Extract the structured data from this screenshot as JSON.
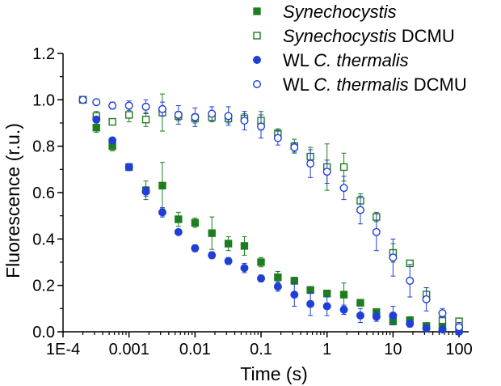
{
  "chart_data": {
    "type": "scatter",
    "title": "",
    "xlabel": "Time (s)",
    "ylabel": "Fluorescence (r.u.)",
    "xscale": "log",
    "xlim": [
      0.0001,
      140
    ],
    "ylim": [
      0.0,
      1.2
    ],
    "xticks": [
      {
        "value": 0.0001,
        "label": "1E-4"
      },
      {
        "value": 0.001,
        "label": "0.001"
      },
      {
        "value": 0.01,
        "label": "0.01"
      },
      {
        "value": 0.1,
        "label": "0.1"
      },
      {
        "value": 1,
        "label": "1"
      },
      {
        "value": 10,
        "label": "10"
      },
      {
        "value": 100,
        "label": "100"
      }
    ],
    "yticks": [
      {
        "value": 0.0,
        "label": "0.0"
      },
      {
        "value": 0.2,
        "label": "0.2"
      },
      {
        "value": 0.4,
        "label": "0.4"
      },
      {
        "value": 0.6,
        "label": "0.6"
      },
      {
        "value": 0.8,
        "label": "0.8"
      },
      {
        "value": 1.0,
        "label": "1.0"
      },
      {
        "value": 1.2,
        "label": "1.2"
      }
    ],
    "legend_position": "top-right",
    "series": [
      {
        "id": "syn",
        "name": "Synechocystis",
        "name_parts": [
          {
            "text": "Synechocystis",
            "italic": true
          }
        ],
        "marker": "square",
        "filled": true,
        "color": "#1e7d1e",
        "points": [
          {
            "x": 0.0002,
            "y": 1.0,
            "err": 0.0
          },
          {
            "x": 0.00032,
            "y": 0.88,
            "err": 0.02
          },
          {
            "x": 0.00056,
            "y": 0.8,
            "err": 0.02
          },
          {
            "x": 0.001,
            "y": 0.71,
            "err": 0.015
          },
          {
            "x": 0.0018,
            "y": 0.61,
            "err": 0.04
          },
          {
            "x": 0.0032,
            "y": 0.63,
            "err": 0.1
          },
          {
            "x": 0.0056,
            "y": 0.485,
            "err": 0.03
          },
          {
            "x": 0.01,
            "y": 0.47,
            "err": 0.02
          },
          {
            "x": 0.018,
            "y": 0.425,
            "err": 0.07
          },
          {
            "x": 0.032,
            "y": 0.38,
            "err": 0.03
          },
          {
            "x": 0.056,
            "y": 0.37,
            "err": 0.04
          },
          {
            "x": 0.1,
            "y": 0.3,
            "err": 0.02
          },
          {
            "x": 0.18,
            "y": 0.235,
            "err": 0.025
          },
          {
            "x": 0.32,
            "y": 0.22,
            "err": 0.015
          },
          {
            "x": 0.56,
            "y": 0.18,
            "err": 0.015
          },
          {
            "x": 1.0,
            "y": 0.165,
            "err": 0.015
          },
          {
            "x": 1.8,
            "y": 0.16,
            "err": 0.05
          },
          {
            "x": 3.2,
            "y": 0.125,
            "err": 0.01
          },
          {
            "x": 5.6,
            "y": 0.085,
            "err": 0.01
          },
          {
            "x": 10,
            "y": 0.045,
            "err": 0.01
          },
          {
            "x": 18,
            "y": 0.05,
            "err": 0.015
          },
          {
            "x": 32,
            "y": 0.025,
            "err": 0.01
          },
          {
            "x": 56,
            "y": 0.02,
            "err": 0.01
          },
          {
            "x": 100,
            "y": 0.01,
            "err": 0.005
          }
        ]
      },
      {
        "id": "syn_dcmu",
        "name": "Synechocystis DCMU",
        "name_parts": [
          {
            "text": "Synechocystis",
            "italic": true
          },
          {
            "text": " DCMU",
            "italic": false
          }
        ],
        "marker": "square",
        "filled": false,
        "color": "#1e7d1e",
        "points": [
          {
            "x": 0.0002,
            "y": 1.0,
            "err": 0.0
          },
          {
            "x": 0.00032,
            "y": 0.93,
            "err": 0.02
          },
          {
            "x": 0.00056,
            "y": 0.905,
            "err": 0.01
          },
          {
            "x": 0.001,
            "y": 0.935,
            "err": 0.03
          },
          {
            "x": 0.0018,
            "y": 0.915,
            "err": 0.03
          },
          {
            "x": 0.0032,
            "y": 0.945,
            "err": 0.08
          },
          {
            "x": 0.0056,
            "y": 0.93,
            "err": 0.02
          },
          {
            "x": 0.01,
            "y": 0.92,
            "err": 0.02
          },
          {
            "x": 0.018,
            "y": 0.925,
            "err": 0.02
          },
          {
            "x": 0.032,
            "y": 0.92,
            "err": 0.02
          },
          {
            "x": 0.056,
            "y": 0.92,
            "err": 0.02
          },
          {
            "x": 0.1,
            "y": 0.91,
            "err": 0.04
          },
          {
            "x": 0.18,
            "y": 0.855,
            "err": 0.02
          },
          {
            "x": 0.32,
            "y": 0.8,
            "err": 0.03
          },
          {
            "x": 0.56,
            "y": 0.755,
            "err": 0.04
          },
          {
            "x": 1.0,
            "y": 0.71,
            "err": 0.1
          },
          {
            "x": 1.8,
            "y": 0.71,
            "err": 0.06
          },
          {
            "x": 3.2,
            "y": 0.565,
            "err": 0.03
          },
          {
            "x": 5.6,
            "y": 0.495,
            "err": 0.02
          },
          {
            "x": 10,
            "y": 0.34,
            "err": 0.04
          },
          {
            "x": 18,
            "y": 0.295,
            "err": 0.01
          },
          {
            "x": 32,
            "y": 0.16,
            "err": 0.03
          },
          {
            "x": 56,
            "y": 0.05,
            "err": 0.01
          },
          {
            "x": 100,
            "y": 0.045,
            "err": 0.01
          }
        ]
      },
      {
        "id": "wl",
        "name": "WL C. thermalis",
        "name_parts": [
          {
            "text": "WL ",
            "italic": false
          },
          {
            "text": "C. thermalis",
            "italic": true
          }
        ],
        "marker": "circle",
        "filled": true,
        "color": "#1f3fd8",
        "points": [
          {
            "x": 0.0002,
            "y": 1.0,
            "err": 0.0
          },
          {
            "x": 0.00032,
            "y": 0.915,
            "err": 0.01
          },
          {
            "x": 0.00056,
            "y": 0.825,
            "err": 0.01
          },
          {
            "x": 0.001,
            "y": 0.71,
            "err": 0.015
          },
          {
            "x": 0.0018,
            "y": 0.605,
            "err": 0.02
          },
          {
            "x": 0.0032,
            "y": 0.515,
            "err": 0.02
          },
          {
            "x": 0.0056,
            "y": 0.43,
            "err": 0.01
          },
          {
            "x": 0.01,
            "y": 0.36,
            "err": 0.015
          },
          {
            "x": 0.018,
            "y": 0.33,
            "err": 0.015
          },
          {
            "x": 0.032,
            "y": 0.305,
            "err": 0.015
          },
          {
            "x": 0.056,
            "y": 0.275,
            "err": 0.02
          },
          {
            "x": 0.1,
            "y": 0.23,
            "err": 0.015
          },
          {
            "x": 0.18,
            "y": 0.195,
            "err": 0.02
          },
          {
            "x": 0.32,
            "y": 0.16,
            "err": 0.05
          },
          {
            "x": 0.56,
            "y": 0.12,
            "err": 0.05
          },
          {
            "x": 1.0,
            "y": 0.11,
            "err": 0.04
          },
          {
            "x": 1.8,
            "y": 0.095,
            "err": 0.02
          },
          {
            "x": 3.2,
            "y": 0.07,
            "err": 0.03
          },
          {
            "x": 5.6,
            "y": 0.065,
            "err": 0.02
          },
          {
            "x": 10,
            "y": 0.07,
            "err": 0.04
          },
          {
            "x": 18,
            "y": 0.035,
            "err": 0.015
          },
          {
            "x": 32,
            "y": 0.015,
            "err": 0.01
          },
          {
            "x": 56,
            "y": 0.01,
            "err": 0.01
          },
          {
            "x": 100,
            "y": 0.0,
            "err": 0.005
          }
        ]
      },
      {
        "id": "wl_dcmu",
        "name": "WL C. thermalis DCMU",
        "name_parts": [
          {
            "text": "WL ",
            "italic": false
          },
          {
            "text": "C. thermalis",
            "italic": true
          },
          {
            "text": " DCMU",
            "italic": false
          }
        ],
        "marker": "circle",
        "filled": false,
        "color": "#1f3fd8",
        "points": [
          {
            "x": 0.0002,
            "y": 1.0,
            "err": 0.0
          },
          {
            "x": 0.00032,
            "y": 0.99,
            "err": 0.01
          },
          {
            "x": 0.00056,
            "y": 0.975,
            "err": 0.015
          },
          {
            "x": 0.001,
            "y": 0.975,
            "err": 0.02
          },
          {
            "x": 0.0018,
            "y": 0.97,
            "err": 0.03
          },
          {
            "x": 0.0032,
            "y": 0.96,
            "err": 0.03
          },
          {
            "x": 0.0056,
            "y": 0.935,
            "err": 0.04
          },
          {
            "x": 0.01,
            "y": 0.925,
            "err": 0.04
          },
          {
            "x": 0.018,
            "y": 0.94,
            "err": 0.03
          },
          {
            "x": 0.032,
            "y": 0.93,
            "err": 0.04
          },
          {
            "x": 0.056,
            "y": 0.91,
            "err": 0.04
          },
          {
            "x": 0.1,
            "y": 0.885,
            "err": 0.05
          },
          {
            "x": 0.18,
            "y": 0.835,
            "err": 0.03
          },
          {
            "x": 0.32,
            "y": 0.795,
            "err": 0.02
          },
          {
            "x": 0.56,
            "y": 0.725,
            "err": 0.06
          },
          {
            "x": 1.0,
            "y": 0.69,
            "err": 0.05
          },
          {
            "x": 1.8,
            "y": 0.62,
            "err": 0.05
          },
          {
            "x": 3.2,
            "y": 0.525,
            "err": 0.06
          },
          {
            "x": 5.6,
            "y": 0.43,
            "err": 0.08
          },
          {
            "x": 10,
            "y": 0.32,
            "err": 0.08
          },
          {
            "x": 18,
            "y": 0.22,
            "err": 0.07
          },
          {
            "x": 32,
            "y": 0.14,
            "err": 0.05
          },
          {
            "x": 56,
            "y": 0.08,
            "err": 0.02
          },
          {
            "x": 100,
            "y": 0.02,
            "err": 0.02
          }
        ]
      }
    ]
  }
}
